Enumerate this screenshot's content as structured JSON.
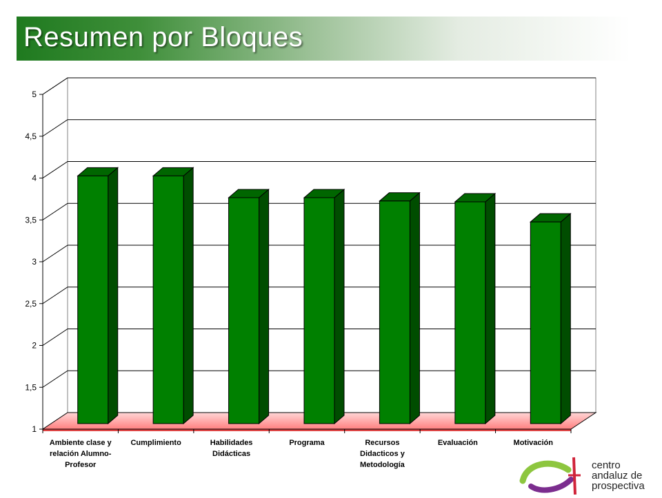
{
  "page_title": "Resumen por Bloques",
  "logo": {
    "lines": [
      "centro",
      "andaluz de",
      "prospectiva"
    ]
  },
  "colors": {
    "bar_front": "#008000",
    "bar_side": "#004d00",
    "bar_top": "#006600",
    "floor": "#ff8080",
    "title_gradient_start": "#1f7a1f"
  },
  "chart_data": {
    "type": "bar",
    "title": "",
    "xlabel": "",
    "ylabel": "",
    "ylim": [
      1,
      5
    ],
    "yticks": [
      "1",
      "1,5",
      "2",
      "2,5",
      "3",
      "3,5",
      "4",
      "4,5",
      "5"
    ],
    "grid": true,
    "categories": [
      [
        "Ambiente clase y",
        "relación Alumno-",
        "Profesor"
      ],
      [
        "Cumplimiento"
      ],
      [
        "Habilidades",
        "Didácticas"
      ],
      [
        "Programa"
      ],
      [
        "Recursos",
        "Didacticos y",
        "Metodología"
      ],
      [
        "Evaluación"
      ],
      [
        "Motivación"
      ]
    ],
    "series": [
      {
        "values": [
          3.96,
          3.96,
          3.7,
          3.7,
          3.66,
          3.65,
          3.41
        ]
      }
    ]
  }
}
